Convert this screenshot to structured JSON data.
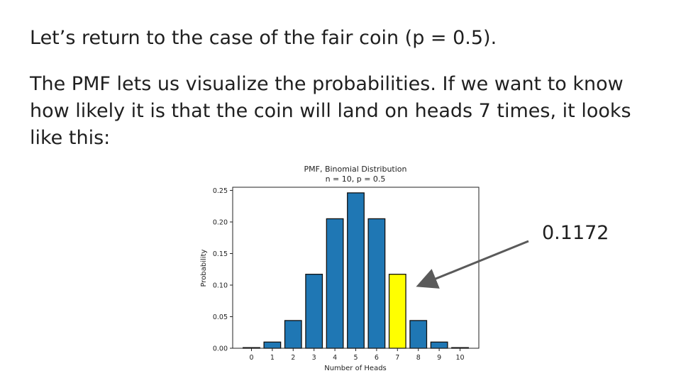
{
  "slide": {
    "line1": "Let’s return to the case of the fair coin (p = 0.5).",
    "paragraph": "The PMF lets us visualize the probabilities. If we want to know how likely it is that the coin will land on heads 7 times, it looks like this:",
    "callout": "0.1172"
  },
  "colors": {
    "bar": "#1f77b4",
    "highlight": "#ffff00",
    "arrow": "#5a5a5a"
  },
  "chart_data": {
    "type": "bar",
    "title": "PMF, Binomial Distribution",
    "subtitle": "n = 10, p = 0.5",
    "xlabel": "Number of Heads",
    "ylabel": "Probability",
    "categories": [
      "0",
      "1",
      "2",
      "3",
      "4",
      "5",
      "6",
      "7",
      "8",
      "9",
      "10"
    ],
    "values": [
      0.001,
      0.0098,
      0.0439,
      0.1172,
      0.2051,
      0.2461,
      0.2051,
      0.1172,
      0.0439,
      0.0098,
      0.001
    ],
    "highlight_category": "7",
    "yticks": [
      "0.00",
      "0.05",
      "0.10",
      "0.15",
      "0.20",
      "0.25"
    ],
    "ylim": [
      0,
      0.255
    ],
    "grid": false
  }
}
